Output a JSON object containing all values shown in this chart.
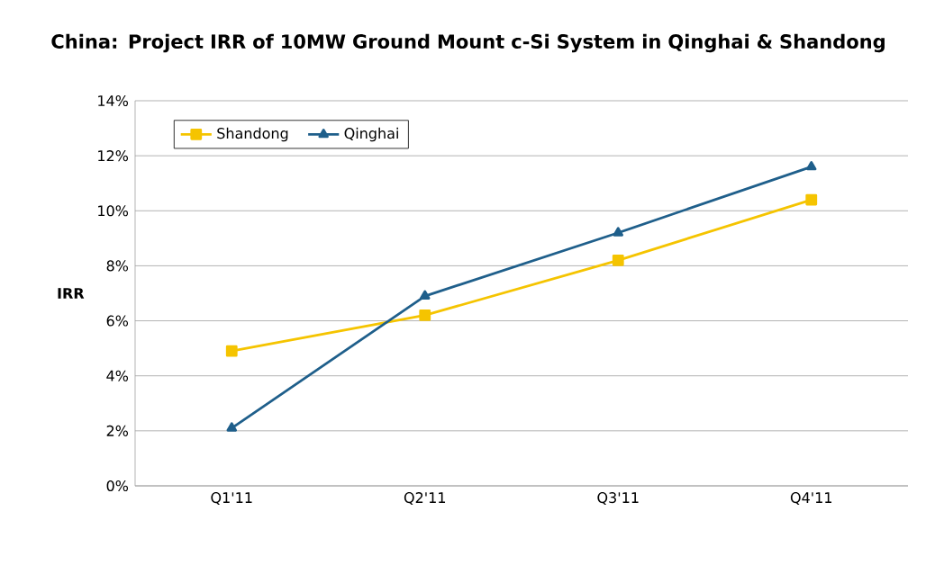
{
  "chart_data": {
    "type": "line",
    "title": "China: Project IRR of 10MW Ground Mount c-Si System in Qinghai & Shandong",
    "ylabel": "IRR",
    "categories": [
      "Q1'11",
      "Q2'11",
      "Q3'11",
      "Q4'11"
    ],
    "series": [
      {
        "name": "Shandong",
        "color": "#f5c400",
        "marker": "square",
        "values": [
          4.9,
          6.2,
          8.2,
          10.4
        ]
      },
      {
        "name": "Qinghai",
        "color": "#1f5f8b",
        "marker": "triangle",
        "values": [
          2.1,
          6.9,
          9.2,
          11.6
        ]
      }
    ],
    "ylim": [
      0,
      14
    ],
    "yticks": [
      {
        "value": 0,
        "label": "0%"
      },
      {
        "value": 2,
        "label": "2%"
      },
      {
        "value": 4,
        "label": "4%"
      },
      {
        "value": 6,
        "label": "6%"
      },
      {
        "value": 8,
        "label": "8%"
      },
      {
        "value": 10,
        "label": "10%"
      },
      {
        "value": 12,
        "label": "12%"
      },
      {
        "value": 14,
        "label": "14%"
      }
    ],
    "grid": "y",
    "legend": "top left",
    "line_style": "solid"
  }
}
